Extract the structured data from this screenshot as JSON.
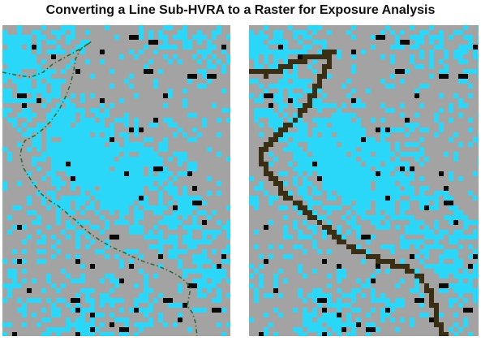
{
  "title": "Converting a Line Sub-HVRA to a Raster for Exposure Analysis",
  "colors": {
    "gray": "#a3a3a3",
    "cyan": "#2ad7f8",
    "black": "#0a0a0a",
    "line_vector": "#2a6b3a",
    "line_raster": "#3a2f14",
    "background": "#ffffff"
  },
  "panels": [
    {
      "name": "left",
      "feature": "line (vector, dashed)"
    },
    {
      "name": "right",
      "feature": "raster (pixelated line cells)"
    }
  ]
}
